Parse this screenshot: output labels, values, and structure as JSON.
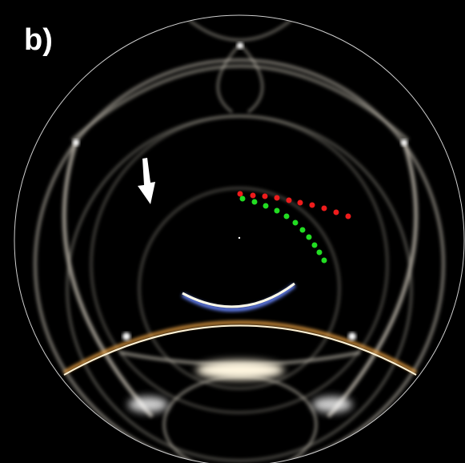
{
  "panel_label": "b)"
}
